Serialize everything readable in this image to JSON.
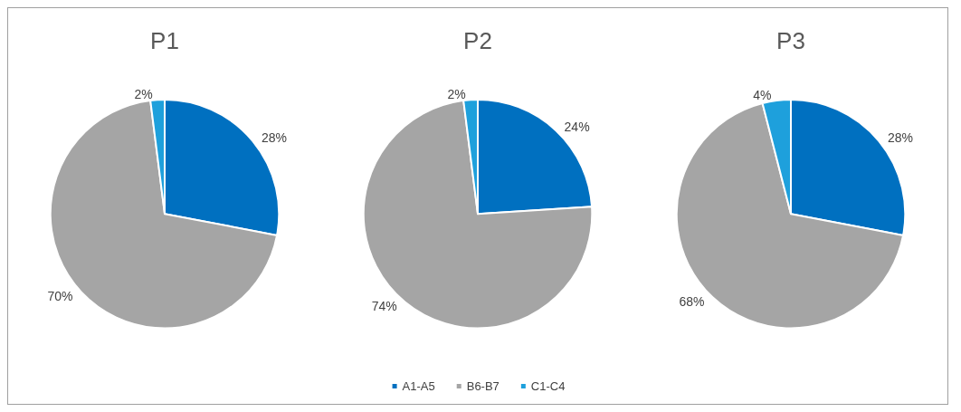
{
  "chart_data": [
    {
      "type": "pie",
      "title": "P1",
      "categories": [
        null,
        null,
        null
      ],
      "values": [
        28,
        70,
        2
      ],
      "value_labels": [
        "28%",
        "70%",
        "2%"
      ],
      "colors": [
        "#0070c0",
        "#a5a5a5",
        "#1ea0dc"
      ],
      "legend": false
    },
    {
      "type": "pie",
      "title": "P2",
      "categories": [
        "A1-A5",
        "B6-B7",
        "C1-C4"
      ],
      "values": [
        24,
        74,
        2
      ],
      "value_labels": [
        "24%",
        "74%",
        "2%"
      ],
      "colors": [
        "#0070c0",
        "#a5a5a5",
        "#1ea0dc"
      ],
      "legend": "bottom"
    },
    {
      "type": "pie",
      "title": "P3",
      "categories": [
        null,
        null,
        null
      ],
      "values": [
        28,
        68,
        4
      ],
      "value_labels": [
        "28%",
        "68%",
        "4%"
      ],
      "colors": [
        "#0070c0",
        "#a5a5a5",
        "#1ea0dc"
      ],
      "legend": false
    }
  ]
}
